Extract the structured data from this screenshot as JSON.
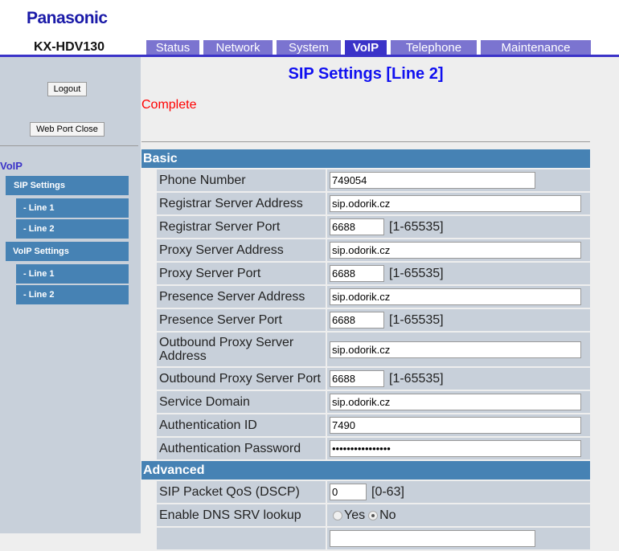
{
  "header": {
    "logo": "Panasonic",
    "model": "KX-HDV130"
  },
  "tabs": [
    {
      "label": "Status"
    },
    {
      "label": "Network"
    },
    {
      "label": "System"
    },
    {
      "label": "VoIP",
      "active": true
    },
    {
      "label": "Telephone"
    },
    {
      "label": "Maintenance"
    }
  ],
  "sidebar": {
    "logout": "Logout",
    "web_port_close": "Web Port Close",
    "section": "VoIP",
    "items": [
      {
        "label": "SIP Settings"
      },
      {
        "label": "- Line 1"
      },
      {
        "label": "- Line 2"
      },
      {
        "label": "VoIP Settings"
      },
      {
        "label": "- Line 1"
      },
      {
        "label": "- Line 2"
      }
    ]
  },
  "main": {
    "title": "SIP Settings [Line 2]",
    "status": "Complete",
    "basic_title": "Basic",
    "advanced_title": "Advanced",
    "basic": [
      {
        "label": "Phone Number",
        "type": "text",
        "value": "749054",
        "size": "mid"
      },
      {
        "label": "Registrar Server Address",
        "type": "text",
        "value": "sip.odorik.cz",
        "size": "wide"
      },
      {
        "label": "Registrar Server Port",
        "type": "port",
        "value": "6688",
        "range": "[1-65535]"
      },
      {
        "label": "Proxy Server Address",
        "type": "text",
        "value": "sip.odorik.cz",
        "size": "wide"
      },
      {
        "label": "Proxy Server Port",
        "type": "port",
        "value": "6688",
        "range": "[1-65535]"
      },
      {
        "label": "Presence Server Address",
        "type": "text",
        "value": "sip.odorik.cz",
        "size": "wide"
      },
      {
        "label": "Presence Server Port",
        "type": "port",
        "value": "6688",
        "range": "[1-65535]"
      },
      {
        "label": "Outbound Proxy Server Address",
        "type": "text",
        "value": "sip.odorik.cz",
        "size": "wide",
        "tall": true
      },
      {
        "label": "Outbound Proxy Server Port",
        "type": "port",
        "value": "6688",
        "range": "[1-65535]"
      },
      {
        "label": "Service Domain",
        "type": "text",
        "value": "sip.odorik.cz",
        "size": "wide"
      },
      {
        "label": "Authentication ID",
        "type": "text",
        "value": "7490",
        "size": "wide"
      },
      {
        "label": "Authentication Password",
        "type": "text",
        "value": "••••••••••••••••",
        "size": "wide"
      }
    ],
    "advanced": [
      {
        "label": "SIP Packet QoS (DSCP)",
        "type": "port",
        "value": "0",
        "range": "[0-63]",
        "size": "small"
      },
      {
        "label": "Enable DNS SRV lookup",
        "type": "radio",
        "options": [
          "Yes",
          "No"
        ],
        "selected": "No"
      },
      {
        "label": "",
        "type": "text",
        "value": "",
        "size": "mid"
      }
    ]
  }
}
